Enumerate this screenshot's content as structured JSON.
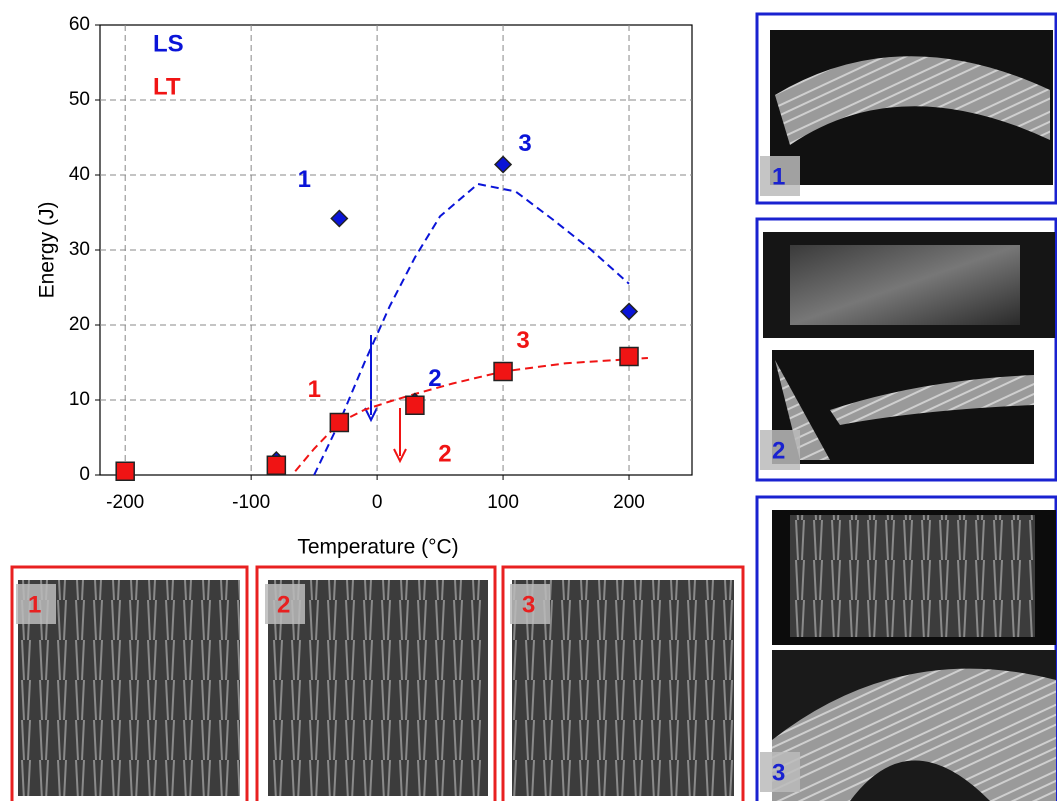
{
  "chart_data": {
    "type": "scatter",
    "x_label": "Temperature (°C)",
    "y_label": "Energy  (J)",
    "xlim": [
      -220,
      250
    ],
    "xticks": [
      -200,
      -100,
      0,
      100,
      200
    ],
    "ylim": [
      0,
      60
    ],
    "yticks": [
      0,
      10,
      20,
      30,
      40,
      50,
      60
    ],
    "grid": true,
    "legend": "upper left",
    "series": [
      {
        "name": "LS",
        "color": "#0a14d8",
        "marker": "diamond",
        "x": [
          -200,
          -80,
          -30,
          30,
          100,
          200
        ],
        "values": [
          0.5,
          2,
          34.2,
          9.8,
          41.4,
          21.8
        ],
        "point_labels": [
          null,
          null,
          "1",
          "2",
          "3",
          null
        ]
      },
      {
        "name": "LT",
        "color": "#f01414",
        "marker": "square",
        "x": [
          -200,
          -80,
          -30,
          30,
          100,
          200
        ],
        "values": [
          0.5,
          1.3,
          7,
          9.3,
          13.8,
          15.8
        ],
        "point_labels": [
          null,
          null,
          "1",
          "2",
          "3",
          null
        ]
      }
    ],
    "trendlines": [
      {
        "color": "#0a14d8",
        "x": [
          -50,
          -30,
          -10,
          10,
          30,
          50,
          80,
          110,
          140,
          170,
          200
        ],
        "values": [
          0,
          7,
          15,
          22.5,
          29,
          34.5,
          38.8,
          37.8,
          34,
          30,
          25.5
        ]
      },
      {
        "color": "#f01414",
        "x": [
          -65,
          -50,
          -30,
          -10,
          10,
          30,
          60,
          100,
          150,
          215
        ],
        "values": [
          0.5,
          3.5,
          7,
          8.7,
          9.8,
          10.8,
          12.2,
          13.8,
          14.9,
          15.6
        ]
      }
    ]
  },
  "photo_panels": {
    "bottom": [
      "1",
      "2",
      "3"
    ],
    "right": [
      "1",
      "2",
      "3"
    ]
  }
}
